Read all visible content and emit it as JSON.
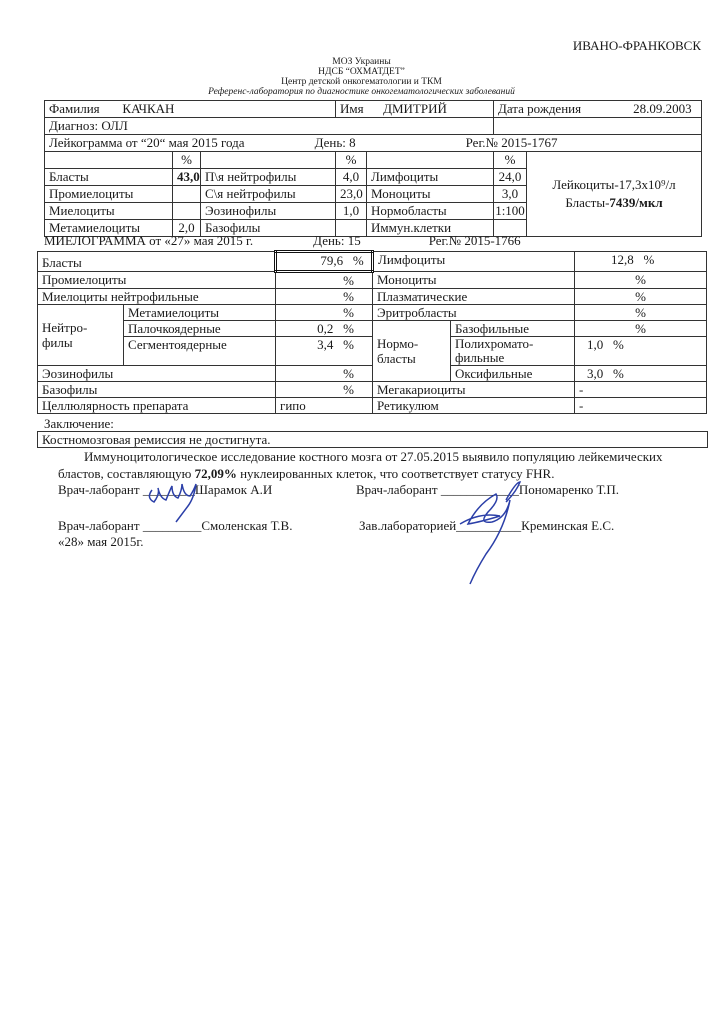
{
  "city": "ИВАНО-ФРАНКОВСК",
  "header": [
    "МОЗ Украины",
    "НДСБ “ОХМАТДЕТ”",
    "Центр детской онкогематологии и ТКМ",
    "Референс-лаборатория по диагностике онкогематологических заболеваний"
  ],
  "patient": {
    "surname_label": "Фамилия",
    "surname": "КАЧКАН",
    "name_label": "Имя",
    "name": "ДМИТРИЙ",
    "dob_label": "Дата рождения",
    "dob": "28.09.2003",
    "diagnosis": "Диагноз:  ОЛЛ"
  },
  "leukogram": {
    "title": "Лейкограмма от  “20“ мая  2015 года",
    "day": "День: 8",
    "reg": "Рег.№  2015-1767",
    "pct": "%",
    "rows": [
      [
        "Бласты",
        "43,0",
        "П\\я нейтрофилы",
        "4,0",
        "Лимфоциты",
        "24,0"
      ],
      [
        "Промиелоциты",
        "",
        "С\\я нейтрофилы",
        "23,0",
        "Моноциты",
        "3,0"
      ],
      [
        "Миелоциты",
        "",
        "Эозинофилы",
        "1,0",
        "Нормобласты",
        "1:100"
      ],
      [
        "Метамиелоциты",
        "2,0",
        "Базофилы",
        "",
        "Иммун.клетки",
        ""
      ]
    ],
    "leukocytes": "Лейкоциты-17,3x10⁹/л",
    "blasts_label": "Бласты-",
    "blasts_value": "7439/мкл"
  },
  "myelogram": {
    "title": "МИЕЛОГРАММА от «27» мая  2015 г.",
    "day": "День: 15",
    "reg": "Рег.№     2015-1766",
    "pct": "%",
    "blasts": {
      "label": "Бласты",
      "value": "79,6"
    },
    "lymph": {
      "label": "Лимфоциты",
      "value": "12,8"
    },
    "promyelo": "Промиелоциты",
    "mono": "Моноциты",
    "myelo": "Миелоциты нейтрофильные",
    "plasma": "Плазматические",
    "neutro": "Нейтро-\nфилы",
    "metamyelo": "Метамиелоциты",
    "erythro": "Эритробласты",
    "band": {
      "label": "Палочкоядерные",
      "value": "0,2"
    },
    "seg": {
      "label": "Сегментоядерные",
      "value": "3,4"
    },
    "normo": "Нормо-\nбласты",
    "baso_n": "Базофильные",
    "poly": {
      "label": "Полихромато-\nфильные",
      "value": "1,0"
    },
    "oxy": {
      "label": "Оксифильные",
      "value": "3,0"
    },
    "eos": "Эозинофилы",
    "baso": "Базофилы",
    "mega": {
      "label": "Мегакариоциты",
      "value": "-"
    },
    "cell": {
      "label": "Целлюлярность препарата",
      "value": "гипо"
    },
    "retic": {
      "label": "Ретикулюм",
      "value": "-"
    }
  },
  "conclusion": {
    "label": "Заключение:",
    "text": "Костномозговая ремиссия не достигнута.",
    "immuno1": "Иммуноцитологическое исследование костного мозга от 27.05.2015 выявило популяцию лейкемических",
    "immuno2a": "бластов, составляющую ",
    "immuno2b": "72,09%",
    "immuno2c": " нуклеированных клеток, что соответствует статусу FHR."
  },
  "signatures": {
    "s1": "Врач-лаборант ________Шарамок А.И",
    "s2": "Врач-лаборант ____________Пономаренко Т.П.",
    "s3": "Врач-лаборант _________Смоленская Т.В.",
    "s4": "Зав.лабораторией__________Креминская Е.С.",
    "date": "«28» мая 2015г."
  }
}
